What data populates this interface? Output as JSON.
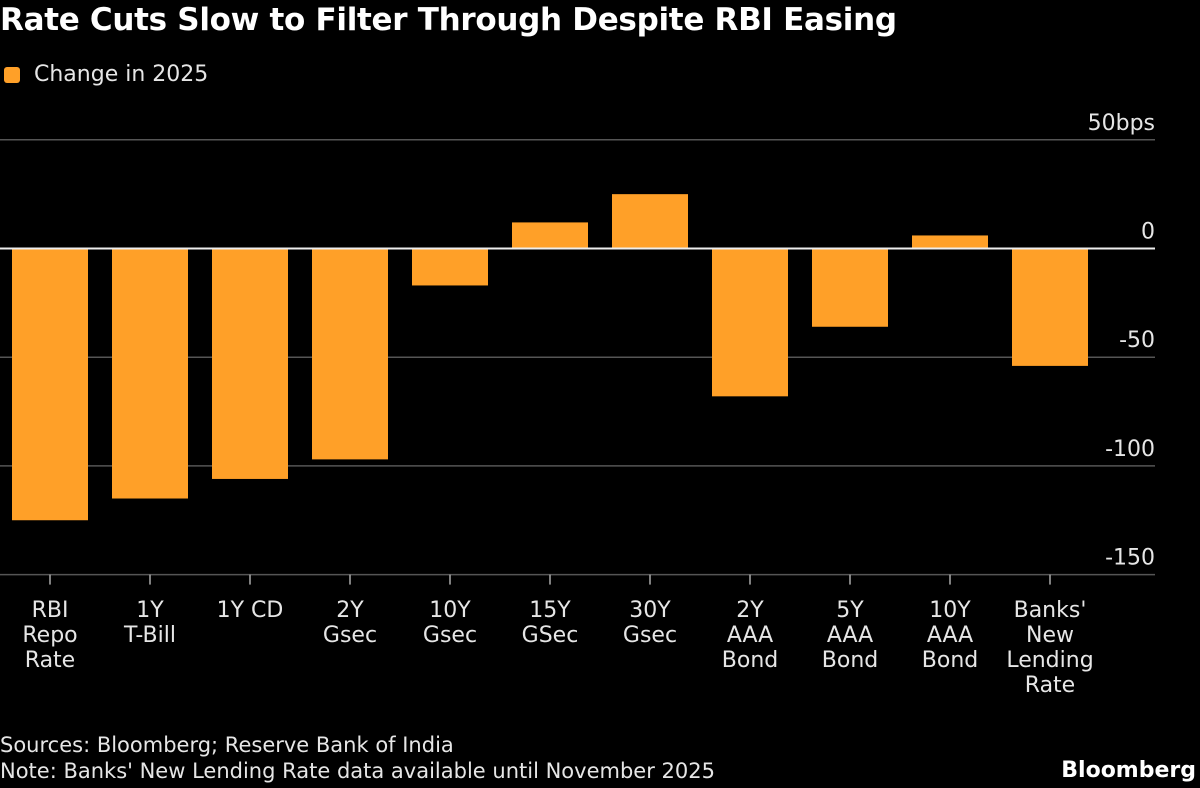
{
  "chart_data": {
    "type": "bar",
    "title": "Rate Cuts Slow to Filter Through Despite RBI Easing",
    "legend": [
      {
        "name": "Change in 2025",
        "color": "#ffa028"
      }
    ],
    "legend_placement": "top-left",
    "categories": [
      [
        "RBI",
        "Repo",
        "Rate"
      ],
      [
        "1Y",
        "T-Bill"
      ],
      [
        "1Y CD"
      ],
      [
        "2Y",
        "Gsec"
      ],
      [
        "10Y",
        "Gsec"
      ],
      [
        "15Y",
        "GSec"
      ],
      [
        "30Y",
        "Gsec"
      ],
      [
        "2Y",
        "AAA",
        "Bond"
      ],
      [
        "5Y",
        "AAA",
        "Bond"
      ],
      [
        "10Y",
        "AAA",
        "Bond"
      ],
      [
        "Banks'",
        "New",
        "Lending",
        "Rate"
      ]
    ],
    "series": [
      {
        "name": "Change in 2025",
        "values": [
          -125,
          -115,
          -106,
          -97,
          -17,
          12,
          25,
          -68,
          -36,
          6,
          -54
        ]
      }
    ],
    "yticks": [
      50,
      0,
      -50,
      -100,
      -150
    ],
    "ytick_labels": [
      "50bps",
      "0",
      "-50",
      "-100",
      "-150"
    ],
    "ylim": [
      -150,
      50
    ],
    "y_axis_side": "right",
    "grid": true,
    "bar_color": "#ffa028"
  },
  "footer": {
    "sources": "Sources: Bloomberg; Reserve Bank of India",
    "note": "Note: Banks' New Lending Rate data available until November 2025",
    "brand": "Bloomberg"
  }
}
